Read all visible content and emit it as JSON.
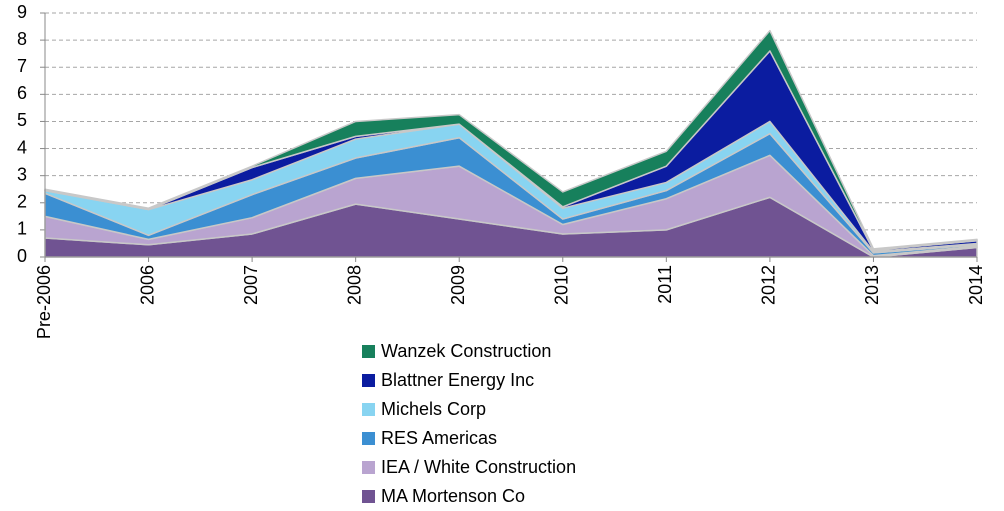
{
  "chart_data": {
    "type": "stacked_area",
    "categories": [
      "Pre-2006",
      "2006",
      "2007",
      "2008",
      "2009",
      "2010",
      "2011",
      "2012",
      "2013",
      "2014"
    ],
    "series": [
      {
        "name": "MA Mortenson Co",
        "color": "#705392",
        "values": [
          0.7,
          0.45,
          0.85,
          1.95,
          1.4,
          0.85,
          1.0,
          2.2,
          0,
          0.35
        ]
      },
      {
        "name": "IEA / White Construction",
        "color": "#b9a4d0",
        "values": [
          0.8,
          0.2,
          0.6,
          0.95,
          1.95,
          0.35,
          1.15,
          1.55,
          0.05,
          0.05
        ]
      },
      {
        "name": "RES Americas",
        "color": "#3b8fd2",
        "values": [
          0.85,
          0.15,
          0.85,
          0.75,
          1.05,
          0.2,
          0.3,
          0.8,
          0.1,
          0.05
        ]
      },
      {
        "name": "Michels Corp",
        "color": "#88d4f1",
        "values": [
          0.1,
          0.95,
          0.55,
          0.7,
          0.5,
          0.4,
          0.3,
          0.45,
          0.05,
          0.05
        ]
      },
      {
        "name": "Blattner Energy Inc",
        "color": "#0b1ca0",
        "values": [
          0,
          0,
          0.45,
          0.1,
          0,
          0.05,
          0.6,
          2.6,
          0.05,
          0.1
        ]
      },
      {
        "name": "Wanzek Construction",
        "color": "#17805c",
        "values": [
          0.05,
          0.05,
          0.05,
          0.55,
          0.35,
          0.55,
          0.55,
          0.75,
          0.05,
          0.05
        ]
      }
    ],
    "ylim": [
      0,
      9
    ],
    "yticks": [
      0,
      1,
      2,
      3,
      4,
      5,
      6,
      7,
      8,
      9
    ],
    "grid": true
  }
}
